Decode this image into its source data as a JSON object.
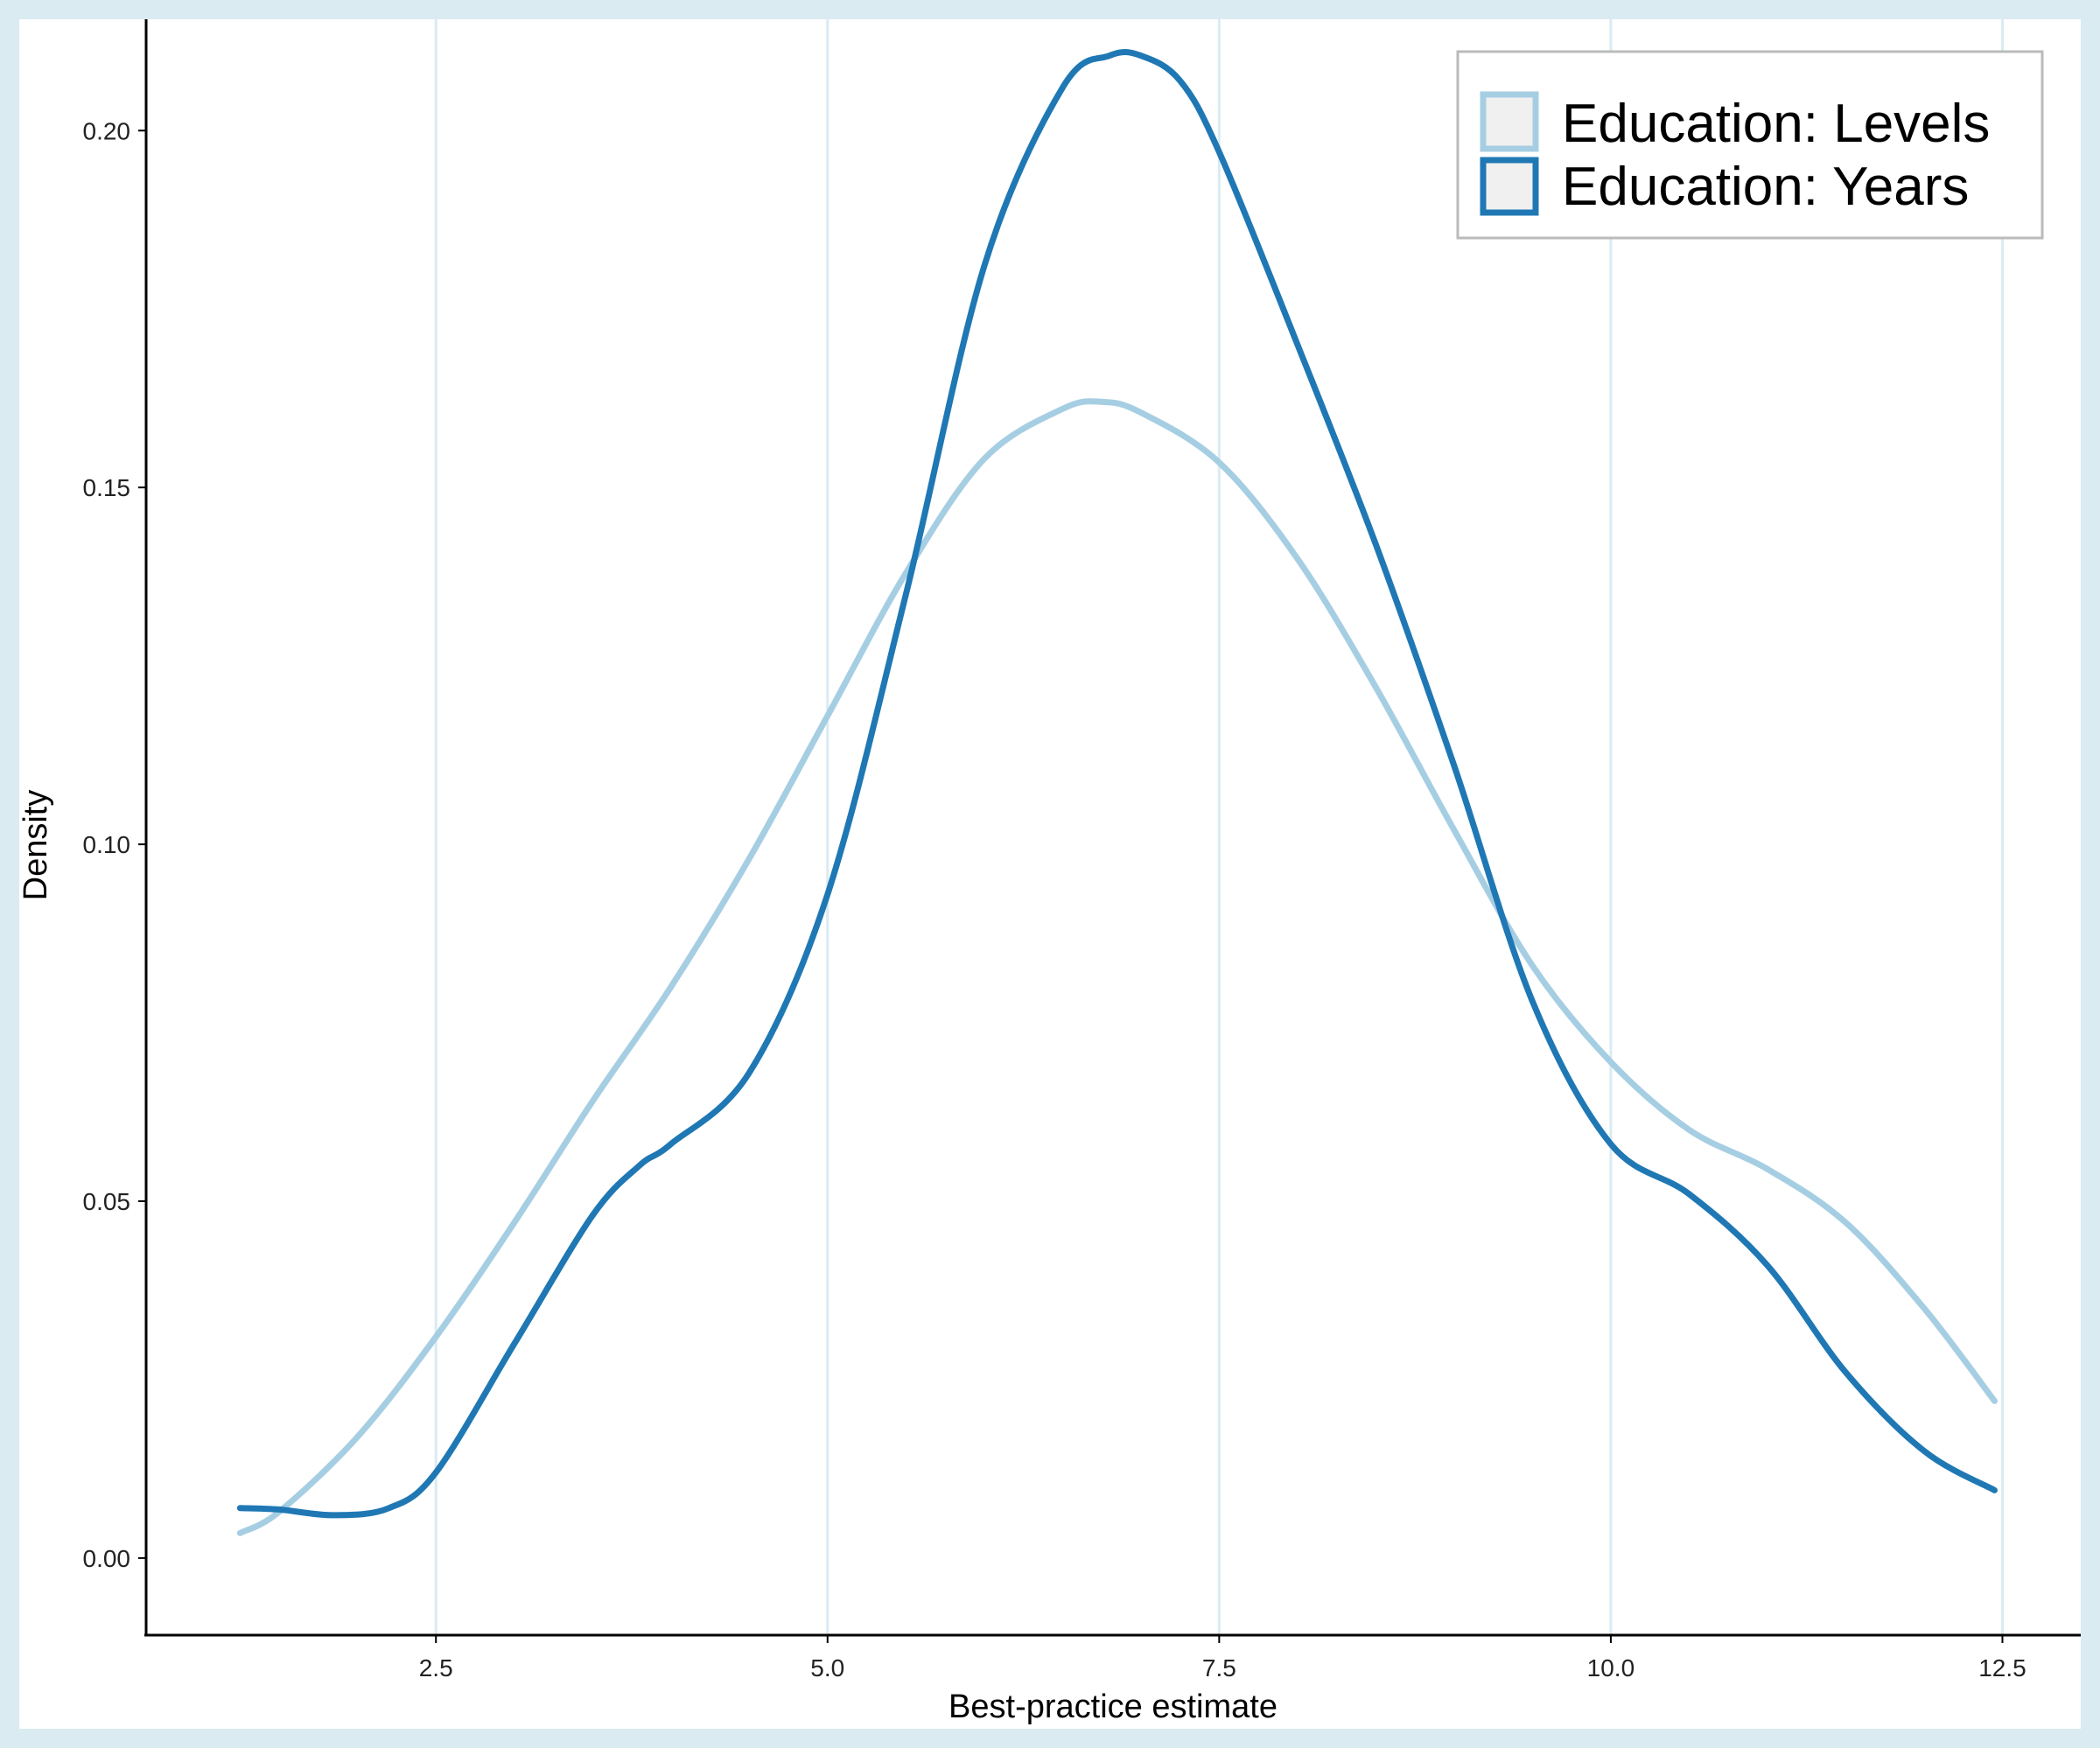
{
  "chart_data": {
    "type": "line",
    "title": "",
    "xlabel": "Best-practice estimate",
    "ylabel": "Density",
    "xlim": [
      0.65,
      13.0
    ],
    "ylim": [
      -0.0108,
      0.2156
    ],
    "x_ticks": [
      2.5,
      5.0,
      7.5,
      10.0,
      12.5
    ],
    "x_tick_labels": [
      "2.5",
      "5.0",
      "7.5",
      "10.0",
      "12.5"
    ],
    "y_ticks": [
      0.0,
      0.05,
      0.1,
      0.15,
      0.2
    ],
    "y_tick_labels": [
      "0.00",
      "0.05",
      "0.10",
      "0.15",
      "0.20"
    ],
    "grid": "vertical major gridlines only",
    "legend_position": "top-right",
    "colors": {
      "background": "#daebf2",
      "panel": "#ffffff",
      "gridline": "#daebf2",
      "axis": "#000000"
    },
    "series": [
      {
        "name": "Education: Levels",
        "color": "#a6cee3",
        "x": [
          1.25,
          1.5,
          2.0,
          2.5,
          3.0,
          3.5,
          4.0,
          4.5,
          5.0,
          5.5,
          6.0,
          6.5,
          6.75,
          7.0,
          7.5,
          8.0,
          8.5,
          9.0,
          9.5,
          10.0,
          10.5,
          11.0,
          11.5,
          12.0,
          12.45
        ],
        "y": [
          0.0035,
          0.0065,
          0.017,
          0.031,
          0.047,
          0.064,
          0.08,
          0.098,
          0.118,
          0.138,
          0.154,
          0.161,
          0.162,
          0.1605,
          0.1535,
          0.14,
          0.122,
          0.102,
          0.083,
          0.0695,
          0.06,
          0.0545,
          0.047,
          0.035,
          0.022
        ]
      },
      {
        "name": "Education: Years",
        "color": "#1f78b4",
        "x": [
          1.25,
          1.5,
          1.85,
          2.2,
          2.5,
          3.0,
          3.5,
          3.8,
          4.0,
          4.5,
          5.0,
          5.5,
          6.0,
          6.5,
          6.8,
          7.0,
          7.25,
          7.5,
          8.0,
          8.5,
          9.0,
          9.5,
          10.0,
          10.5,
          11.0,
          11.5,
          12.0,
          12.45
        ],
        "y": [
          0.007,
          0.0068,
          0.006,
          0.007,
          0.012,
          0.03,
          0.048,
          0.055,
          0.058,
          0.068,
          0.093,
          0.135,
          0.181,
          0.206,
          0.2105,
          0.2105,
          0.207,
          0.197,
          0.17,
          0.142,
          0.111,
          0.078,
          0.058,
          0.051,
          0.041,
          0.026,
          0.015,
          0.0095
        ]
      }
    ]
  }
}
